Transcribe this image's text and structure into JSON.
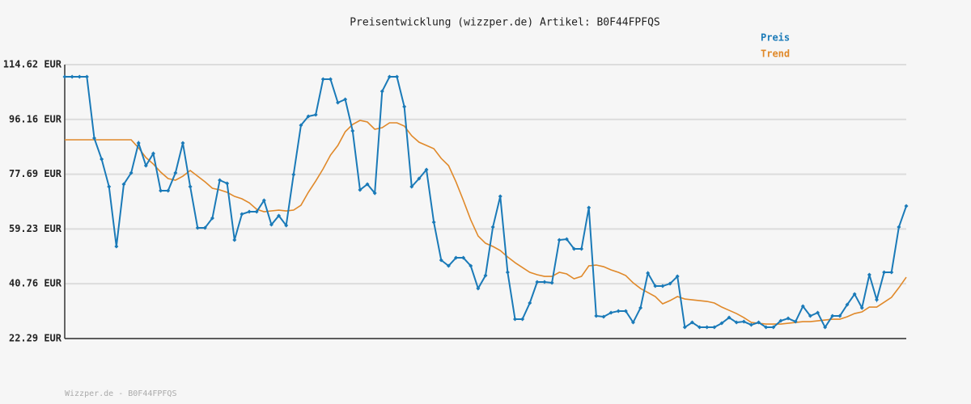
{
  "chart_data": {
    "type": "line",
    "title": "Preisentwicklung (wizzper.de) Artikel: B0F44FPFQS",
    "ylim": [
      22.29,
      114.62
    ],
    "yticks": [
      {
        "value": 22.29,
        "label": "22.29 EUR"
      },
      {
        "value": 40.76,
        "label": "40.76 EUR"
      },
      {
        "value": 59.23,
        "label": "59.23 EUR"
      },
      {
        "value": 77.69,
        "label": "77.69 EUR"
      },
      {
        "value": 96.16,
        "label": "96.16 EUR"
      },
      {
        "value": 114.62,
        "label": "114.62 EUR"
      }
    ],
    "grid": true,
    "legend": "top-right",
    "series": [
      {
        "name": "Preis",
        "color": "#1a7ab8",
        "markers": true,
        "values": [
          110.53,
          110.53,
          110.53,
          110.53,
          89.83,
          82.75,
          73.49,
          53.33,
          74.31,
          78.12,
          88.2,
          80.57,
          84.66,
          72.13,
          72.13,
          78.12,
          88.2,
          73.49,
          59.6,
          59.6,
          62.87,
          75.67,
          74.58,
          55.52,
          64.23,
          65.05,
          65.05,
          68.86,
          60.69,
          63.69,
          60.42,
          77.58,
          94.19,
          97.19,
          97.73,
          109.72,
          109.72,
          101.82,
          102.91,
          92.29,
          72.4,
          74.31,
          71.31,
          105.63,
          110.53,
          110.53,
          100.46,
          73.49,
          76.21,
          79.21,
          61.51,
          48.71,
          46.8,
          49.52,
          49.52,
          46.8,
          39.17,
          43.53,
          59.87,
          70.22,
          44.62,
          28.82,
          28.82,
          34.27,
          41.35,
          41.35,
          41.08,
          55.52,
          55.79,
          52.51,
          52.51,
          66.41,
          29.91,
          29.64,
          31.0,
          31.55,
          31.55,
          27.73,
          32.63,
          44.34,
          39.98,
          39.98,
          40.8,
          43.25,
          26.09,
          27.73,
          26.09,
          26.09,
          26.09,
          27.45,
          29.36,
          27.73,
          28.0,
          26.91,
          27.73,
          26.09,
          26.09,
          28.27,
          29.09,
          28.0,
          33.17,
          29.91,
          31.0,
          26.09,
          29.91,
          29.91,
          33.72,
          37.26,
          32.63,
          43.8,
          35.35,
          44.62,
          44.62,
          59.87,
          66.95
        ]
      },
      {
        "name": "Trend",
        "color": "#e0892a",
        "markers": false,
        "values": [
          89.29,
          89.29,
          89.29,
          89.29,
          89.29,
          89.29,
          89.29,
          89.29,
          89.29,
          89.29,
          86.56,
          83.29,
          81.11,
          78.39,
          76.21,
          75.67,
          77.03,
          78.94,
          77.03,
          75.12,
          72.94,
          72.4,
          71.58,
          70.22,
          69.4,
          68.04,
          65.86,
          65.05,
          65.32,
          65.59,
          65.32,
          65.59,
          67.22,
          71.58,
          75.39,
          79.48,
          84.11,
          87.38,
          92.01,
          94.46,
          95.82,
          95.28,
          92.83,
          93.37,
          95.01,
          95.01,
          93.92,
          90.65,
          88.47,
          87.38,
          86.29,
          83.02,
          80.57,
          75.12,
          68.86,
          62.32,
          56.87,
          54.42,
          53.33,
          51.97,
          49.79,
          47.88,
          46.25,
          44.62,
          43.8,
          43.25,
          43.25,
          44.62,
          44.07,
          42.43,
          43.25,
          46.8,
          47.07,
          46.52,
          45.43,
          44.62,
          43.53,
          41.08,
          39.17,
          37.81,
          36.44,
          33.99,
          35.08,
          36.44,
          35.62,
          35.35,
          35.08,
          34.81,
          34.27,
          32.9,
          31.81,
          30.72,
          29.36,
          27.73,
          27.45,
          27.18,
          27.18,
          27.18,
          27.45,
          27.73,
          28.0,
          28.0,
          28.27,
          28.55,
          28.82,
          28.82,
          29.64,
          30.72,
          31.27,
          32.9,
          32.9,
          34.54,
          36.17,
          39.44,
          42.98
        ]
      }
    ]
  },
  "footer": "Wizzper.de - B0F44FPFQS"
}
